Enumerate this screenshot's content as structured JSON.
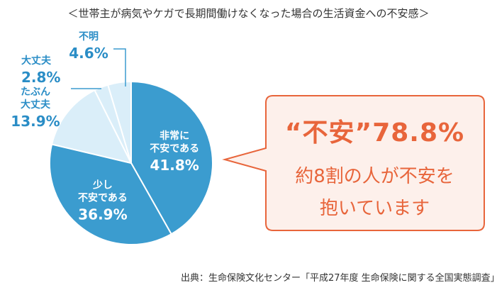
{
  "chart_data": {
    "type": "pie",
    "title": "＜世帯主が病気やケガで長期間働けなくなった場合の生活資金への不安感＞",
    "slices": [
      {
        "label_lines": [
          "非常に",
          "不安である"
        ],
        "value": 41.8,
        "value_label": "41.8%",
        "color": "#3b9ccf",
        "text_color": "#ffffff"
      },
      {
        "label_lines": [
          "少し",
          "不安である"
        ],
        "value": 36.9,
        "value_label": "36.9%",
        "color": "#3b9ccf",
        "text_color": "#ffffff"
      },
      {
        "label_lines": [
          "たぶん",
          "大丈夫"
        ],
        "value": 13.9,
        "value_label": "13.9%",
        "color": "#daeef9",
        "text_color": "#2a8dc6"
      },
      {
        "label_lines": [
          "大丈夫"
        ],
        "value": 2.8,
        "value_label": "2.8%",
        "color": "#daeef9",
        "text_color": "#2a8dc6"
      },
      {
        "label_lines": [
          "不明"
        ],
        "value": 4.6,
        "value_label": "4.6%",
        "color": "#daeef9",
        "text_color": "#2a8dc6"
      }
    ]
  },
  "callout": {
    "headline": "“不安”78.8%",
    "line1": "約8割の人が不安を",
    "line2": "抱いています",
    "color": "#e8653b",
    "fill": "#fdf0eb"
  },
  "source": "出典：生命保険文化センター「平成27年度 生命保険に関する全国実態調査」"
}
